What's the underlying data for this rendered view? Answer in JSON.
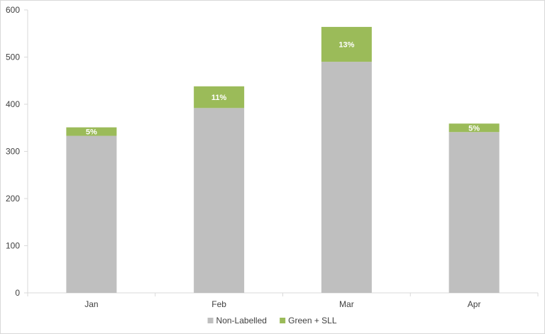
{
  "chart_data": {
    "type": "bar",
    "stacked": true,
    "title": "",
    "xlabel": "",
    "ylabel": "",
    "categories": [
      "Jan",
      "Feb",
      "Mar",
      "Apr"
    ],
    "series": [
      {
        "name": "Non-Labelled",
        "color": "#bfbfbf",
        "values": [
          333,
          392,
          490,
          341
        ]
      },
      {
        "name": "Green + SLL",
        "color": "#9bbb59",
        "values": [
          18,
          46,
          74,
          18
        ],
        "data_labels": [
          "5%",
          "11%",
          "13%",
          "5%"
        ]
      }
    ],
    "ylim": [
      0,
      600
    ],
    "yticks": [
      0,
      100,
      200,
      300,
      400,
      500,
      600
    ],
    "grid": false,
    "legend_position": "bottom"
  }
}
